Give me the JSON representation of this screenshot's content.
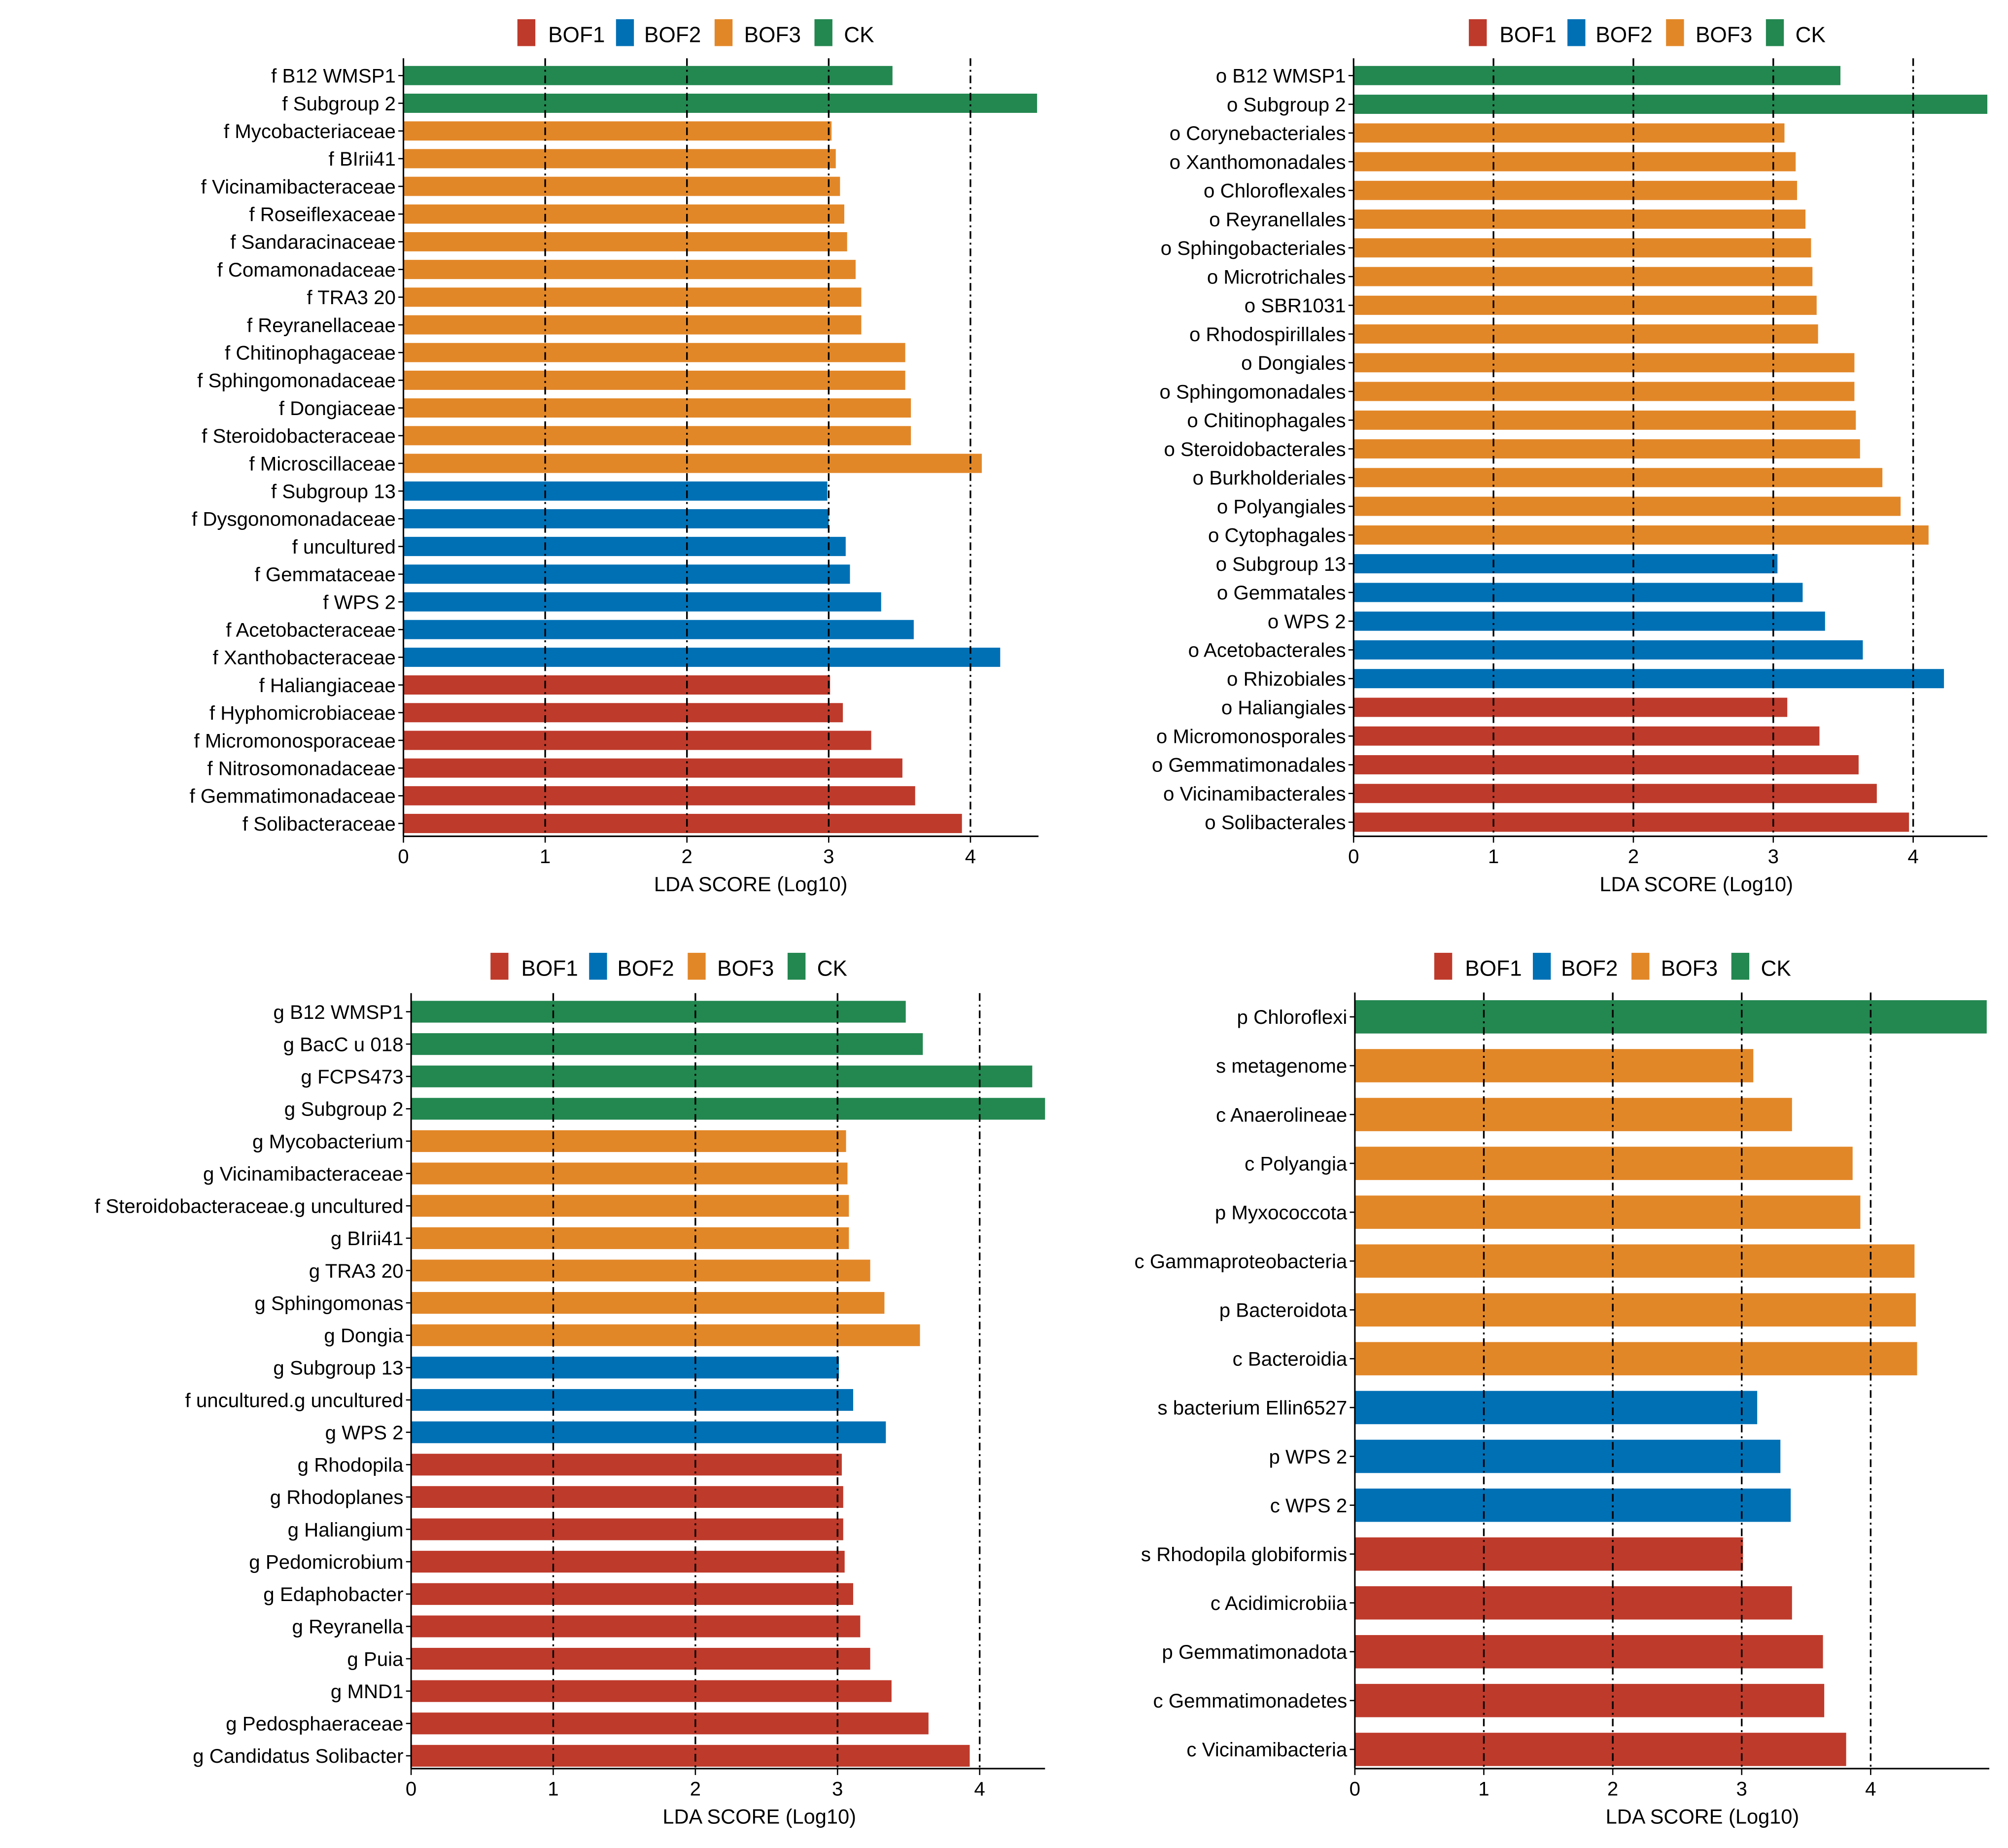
{
  "legend": [
    {
      "name": "BOF1",
      "color": "#BE3A2B"
    },
    {
      "name": "BOF2",
      "color": "#0070B5"
    },
    {
      "name": "BOF3",
      "color": "#E28728"
    },
    {
      "name": "CK",
      "color": "#238750"
    }
  ],
  "chart_data": [
    {
      "type": "bar",
      "orientation": "horizontal",
      "xlabel": "LDA SCORE (Log10)",
      "xticks": [
        "0",
        "1",
        "2",
        "3",
        "4"
      ],
      "xlim": [
        0,
        4.48
      ],
      "grid": "dash-dot vertical lines at 1,2,3,4",
      "legend_position": "top",
      "categories": [
        "f B12 WMSP1",
        "f Subgroup 2",
        "f Mycobacteriaceae",
        "f BIrii41",
        "f Vicinamibacteraceae",
        "f Roseiflexaceae",
        "f Sandaracinaceae",
        "f Comamonadaceae",
        "f TRA3 20",
        "f Reyranellaceae",
        "f Chitinophagaceae",
        "f Sphingomonadaceae",
        "f Dongiaceae",
        "f Steroidobacteraceae",
        "f Microscillaceae",
        "f Subgroup 13",
        "f Dysgonomonadaceae",
        "f uncultured",
        "f Gemmataceae",
        "f WPS 2",
        "f Acetobacteraceae",
        "f Xanthobacteraceae",
        "f Haliangiaceae",
        "f Hyphomicrobiaceae",
        "f Micromonosporaceae",
        "f Nitrosomonadaceae",
        "f Gemmatimonadaceae",
        "f Solibacteraceae"
      ],
      "values": [
        3.45,
        4.47,
        3.02,
        3.05,
        3.08,
        3.11,
        3.13,
        3.19,
        3.23,
        3.23,
        3.54,
        3.54,
        3.58,
        3.58,
        4.08,
        2.99,
        3.0,
        3.12,
        3.15,
        3.37,
        3.6,
        4.21,
        3.01,
        3.1,
        3.3,
        3.52,
        3.61,
        3.94
      ],
      "groups": [
        "CK",
        "CK",
        "BOF3",
        "BOF3",
        "BOF3",
        "BOF3",
        "BOF3",
        "BOF3",
        "BOF3",
        "BOF3",
        "BOF3",
        "BOF3",
        "BOF3",
        "BOF3",
        "BOF3",
        "BOF2",
        "BOF2",
        "BOF2",
        "BOF2",
        "BOF2",
        "BOF2",
        "BOF2",
        "BOF1",
        "BOF1",
        "BOF1",
        "BOF1",
        "BOF1",
        "BOF1"
      ]
    },
    {
      "type": "bar",
      "orientation": "horizontal",
      "xlabel": "LDA SCORE (Log10)",
      "xticks": [
        "0",
        "1",
        "2",
        "3",
        "4"
      ],
      "xlim": [
        0,
        4.53
      ],
      "grid": "dash-dot vertical lines at 1,2,3,4",
      "legend_position": "top",
      "categories": [
        "o B12 WMSP1",
        "o Subgroup 2",
        "o Corynebacteriales",
        "o Xanthomonadales",
        "o Chloroflexales",
        "o Reyranellales",
        "o Sphingobacteriales",
        "o Microtrichales",
        "o SBR1031",
        "o Rhodospirillales",
        "o Dongiales",
        "o Sphingomonadales",
        "o Chitinophagales",
        "o Steroidobacterales",
        "o Burkholderiales",
        "o Polyangiales",
        "o Cytophagales",
        "o Subgroup 13",
        "o Gemmatales",
        "o WPS 2",
        "o Acetobacterales",
        "o Rhizobiales",
        "o Haliangiales",
        "o Micromonosporales",
        "o Gemmatimonadales",
        "o Vicinamibacterales",
        "o Solibacterales"
      ],
      "values": [
        3.48,
        4.53,
        3.08,
        3.16,
        3.17,
        3.23,
        3.27,
        3.28,
        3.31,
        3.32,
        3.58,
        3.58,
        3.59,
        3.62,
        3.78,
        3.91,
        4.11,
        3.03,
        3.21,
        3.37,
        3.64,
        4.22,
        3.1,
        3.33,
        3.61,
        3.74,
        3.97
      ],
      "groups": [
        "CK",
        "CK",
        "BOF3",
        "BOF3",
        "BOF3",
        "BOF3",
        "BOF3",
        "BOF3",
        "BOF3",
        "BOF3",
        "BOF3",
        "BOF3",
        "BOF3",
        "BOF3",
        "BOF3",
        "BOF3",
        "BOF3",
        "BOF2",
        "BOF2",
        "BOF2",
        "BOF2",
        "BOF2",
        "BOF1",
        "BOF1",
        "BOF1",
        "BOF1",
        "BOF1"
      ]
    },
    {
      "type": "bar",
      "orientation": "horizontal",
      "xlabel": "LDA SCORE (Log10)",
      "xticks": [
        "0",
        "1",
        "2",
        "3",
        "4"
      ],
      "xlim": [
        0,
        4.46
      ],
      "grid": "dash-dot vertical lines at 1,2,3,4",
      "legend_position": "top",
      "categories": [
        "g B12 WMSP1",
        "g BacC u 018",
        "g FCPS473",
        "g Subgroup 2",
        "g Mycobacterium",
        "g Vicinamibacteraceae",
        "f Steroidobacteraceae.g uncultured",
        "g BIrii41",
        "g TRA3 20",
        "g Sphingomonas",
        "g Dongia",
        "g Subgroup 13",
        "f uncultured.g uncultured",
        "g WPS 2",
        "g Rhodopila",
        "g Rhodoplanes",
        "g Haliangium",
        "g Pedomicrobium",
        "g Edaphobacter",
        "g Reyranella",
        "g Puia",
        "g MND1",
        "g Pedosphaeraceae",
        "g Candidatus Solibacter"
      ],
      "values": [
        3.48,
        3.6,
        4.37,
        4.46,
        3.06,
        3.07,
        3.08,
        3.08,
        3.23,
        3.33,
        3.58,
        3.01,
        3.11,
        3.34,
        3.03,
        3.04,
        3.04,
        3.05,
        3.11,
        3.16,
        3.23,
        3.38,
        3.64,
        3.93
      ],
      "groups": [
        "CK",
        "CK",
        "CK",
        "CK",
        "BOF3",
        "BOF3",
        "BOF3",
        "BOF3",
        "BOF3",
        "BOF3",
        "BOF3",
        "BOF2",
        "BOF2",
        "BOF2",
        "BOF1",
        "BOF1",
        "BOF1",
        "BOF1",
        "BOF1",
        "BOF1",
        "BOF1",
        "BOF1",
        "BOF1",
        "BOF1"
      ]
    },
    {
      "type": "bar",
      "orientation": "horizontal",
      "xlabel": "LDA SCORE (Log10)",
      "xticks": [
        "0",
        "1",
        "2",
        "3",
        "4"
      ],
      "xlim": [
        0,
        4.92
      ],
      "grid": "dash-dot vertical lines at 1,2,3,4",
      "legend_position": "top",
      "categories": [
        "p Chloroflexi",
        "s metagenome",
        "c Anaerolineae",
        "c Polyangia",
        "p Myxococcota",
        "c Gammaproteobacteria",
        "p Bacteroidota",
        "c Bacteroidia",
        "s bacterium Ellin6527",
        "p WPS 2",
        "c WPS 2",
        "s Rhodopila globiformis",
        "c Acidimicrobiia",
        "p Gemmatimonadota",
        "c Gemmatimonadetes",
        "c Vicinamibacteria"
      ],
      "values": [
        4.9,
        3.09,
        3.39,
        3.86,
        3.92,
        4.34,
        4.35,
        4.36,
        3.12,
        3.3,
        3.38,
        3.01,
        3.39,
        3.63,
        3.64,
        3.81
      ],
      "groups": [
        "CK",
        "BOF3",
        "BOF3",
        "BOF3",
        "BOF3",
        "BOF3",
        "BOF3",
        "BOF3",
        "BOF2",
        "BOF2",
        "BOF2",
        "BOF1",
        "BOF1",
        "BOF1",
        "BOF1",
        "BOF1"
      ]
    }
  ]
}
